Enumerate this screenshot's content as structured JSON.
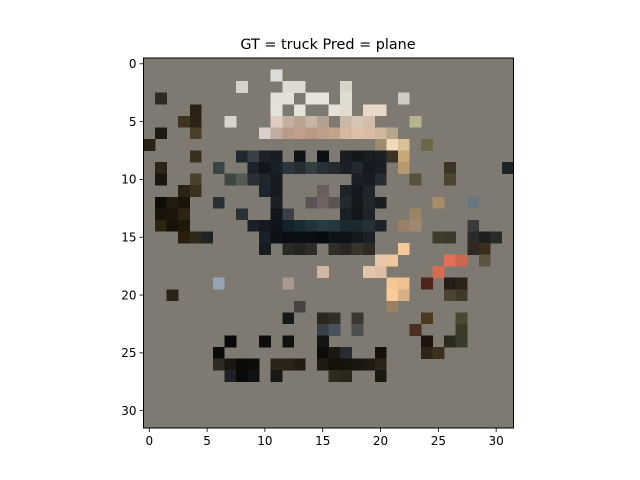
{
  "chart_data": {
    "type": "heatmap",
    "title": "GT = truck Pred = plane",
    "xlabel": "",
    "ylabel": "",
    "width": 32,
    "height": 32,
    "xlim": [
      -0.5,
      31.5
    ],
    "ylim": [
      31.5,
      -0.5
    ],
    "xticks": [
      0,
      5,
      10,
      15,
      20,
      25,
      30
    ],
    "yticks": [
      0,
      5,
      10,
      15,
      20,
      25,
      30
    ],
    "background": "#7e7a72",
    "pixels": [
      {
        "x": 11,
        "y": 1,
        "c": "#dcdcd8"
      },
      {
        "x": 8,
        "y": 2,
        "c": "#d6d2c8"
      },
      {
        "x": 12,
        "y": 2,
        "c": "#dedad2"
      },
      {
        "x": 13,
        "y": 2,
        "c": "#dedad2"
      },
      {
        "x": 17,
        "y": 2,
        "c": "#d8d4c8"
      },
      {
        "x": 1,
        "y": 3,
        "c": "#2e2a20"
      },
      {
        "x": 11,
        "y": 3,
        "c": "#e4e0d8"
      },
      {
        "x": 12,
        "y": 3,
        "c": "#e4e0d8"
      },
      {
        "x": 14,
        "y": 3,
        "c": "#e8e4dc"
      },
      {
        "x": 15,
        "y": 3,
        "c": "#e8e4dc"
      },
      {
        "x": 17,
        "y": 3,
        "c": "#e0dcd2"
      },
      {
        "x": 22,
        "y": 3,
        "c": "#d0ccc4"
      },
      {
        "x": 4,
        "y": 4,
        "c": "#2a2214"
      },
      {
        "x": 11,
        "y": 4,
        "c": "#e6e2da"
      },
      {
        "x": 13,
        "y": 4,
        "c": "#e6e2da"
      },
      {
        "x": 16,
        "y": 4,
        "c": "#e6e2da"
      },
      {
        "x": 17,
        "y": 4,
        "c": "#e0dad0"
      },
      {
        "x": 19,
        "y": 4,
        "c": "#e8d8c8"
      },
      {
        "x": 20,
        "y": 4,
        "c": "#e8d8c8"
      },
      {
        "x": 3,
        "y": 5,
        "c": "#3e3420"
      },
      {
        "x": 4,
        "y": 5,
        "c": "#2c2416"
      },
      {
        "x": 7,
        "y": 5,
        "c": "#d8d4cc"
      },
      {
        "x": 11,
        "y": 5,
        "c": "#e0ccc0"
      },
      {
        "x": 12,
        "y": 5,
        "c": "#c4b0a0"
      },
      {
        "x": 13,
        "y": 5,
        "c": "#b8a490"
      },
      {
        "x": 14,
        "y": 5,
        "c": "#c8b4a4"
      },
      {
        "x": 15,
        "y": 5,
        "c": "#b4a090"
      },
      {
        "x": 17,
        "y": 5,
        "c": "#c8b8a8"
      },
      {
        "x": 18,
        "y": 5,
        "c": "#d8c4b4"
      },
      {
        "x": 19,
        "y": 5,
        "c": "#d0bca8"
      },
      {
        "x": 23,
        "y": 5,
        "c": "#b8b490"
      },
      {
        "x": 1,
        "y": 6,
        "c": "#1e1a10"
      },
      {
        "x": 4,
        "y": 6,
        "c": "#4a4028"
      },
      {
        "x": 10,
        "y": 6,
        "c": "#d8d0cc"
      },
      {
        "x": 11,
        "y": 6,
        "c": "#c0aca0"
      },
      {
        "x": 12,
        "y": 6,
        "c": "#b89c88"
      },
      {
        "x": 13,
        "y": 6,
        "c": "#c0a08c"
      },
      {
        "x": 14,
        "y": 6,
        "c": "#b89a84"
      },
      {
        "x": 15,
        "y": 6,
        "c": "#bca08c"
      },
      {
        "x": 16,
        "y": 6,
        "c": "#c0a48c"
      },
      {
        "x": 17,
        "y": 6,
        "c": "#d4b8a0"
      },
      {
        "x": 18,
        "y": 6,
        "c": "#dcc0a8"
      },
      {
        "x": 19,
        "y": 6,
        "c": "#d8bca4"
      },
      {
        "x": 20,
        "y": 6,
        "c": "#d0b89c"
      },
      {
        "x": 21,
        "y": 6,
        "c": "#b4a88c"
      },
      {
        "x": 0,
        "y": 7,
        "c": "#2a2418"
      },
      {
        "x": 20,
        "y": 7,
        "c": "#9c8c70"
      },
      {
        "x": 21,
        "y": 7,
        "c": "#f0d8b8"
      },
      {
        "x": 22,
        "y": 7,
        "c": "#d8c098"
      },
      {
        "x": 24,
        "y": 7,
        "c": "#6a6848"
      },
      {
        "x": 4,
        "y": 8,
        "c": "#3a3020"
      },
      {
        "x": 8,
        "y": 8,
        "c": "#202830"
      },
      {
        "x": 9,
        "y": 8,
        "c": "#3a4048"
      },
      {
        "x": 10,
        "y": 8,
        "c": "#1c2228"
      },
      {
        "x": 11,
        "y": 8,
        "c": "#181e24"
      },
      {
        "x": 13,
        "y": 8,
        "c": "#101418"
      },
      {
        "x": 15,
        "y": 8,
        "c": "#0c1014"
      },
      {
        "x": 17,
        "y": 8,
        "c": "#1a1e22"
      },
      {
        "x": 18,
        "y": 8,
        "c": "#14181c"
      },
      {
        "x": 19,
        "y": 8,
        "c": "#181c20"
      },
      {
        "x": 20,
        "y": 8,
        "c": "#1c2024"
      },
      {
        "x": 21,
        "y": 8,
        "c": "#3a3428"
      },
      {
        "x": 22,
        "y": 8,
        "c": "#c8a878"
      },
      {
        "x": 1,
        "y": 9,
        "c": "#2c2618"
      },
      {
        "x": 6,
        "y": 9,
        "c": "#3a4440"
      },
      {
        "x": 9,
        "y": 9,
        "c": "#1c2228"
      },
      {
        "x": 10,
        "y": 9,
        "c": "#10161c"
      },
      {
        "x": 11,
        "y": 9,
        "c": "#18202a"
      },
      {
        "x": 12,
        "y": 9,
        "c": "#2c343c"
      },
      {
        "x": 13,
        "y": 9,
        "c": "#242c34"
      },
      {
        "x": 14,
        "y": 9,
        "c": "#343c44"
      },
      {
        "x": 15,
        "y": 9,
        "c": "#2a3038"
      },
      {
        "x": 16,
        "y": 9,
        "c": "#242a30"
      },
      {
        "x": 17,
        "y": 9,
        "c": "#1a2026"
      },
      {
        "x": 18,
        "y": 9,
        "c": "#222830"
      },
      {
        "x": 19,
        "y": 9,
        "c": "#141a20"
      },
      {
        "x": 20,
        "y": 9,
        "c": "#1a1e22"
      },
      {
        "x": 22,
        "y": 9,
        "c": "#b89870"
      },
      {
        "x": 26,
        "y": 9,
        "c": "#3a3424"
      },
      {
        "x": 31,
        "y": 9,
        "c": "#1c2426"
      },
      {
        "x": 1,
        "y": 10,
        "c": "#1a160e"
      },
      {
        "x": 4,
        "y": 10,
        "c": "#4a4030"
      },
      {
        "x": 7,
        "y": 10,
        "c": "#3e4640"
      },
      {
        "x": 8,
        "y": 10,
        "c": "#525a54"
      },
      {
        "x": 9,
        "y": 10,
        "c": "#2a3036"
      },
      {
        "x": 10,
        "y": 10,
        "c": "#1e262e"
      },
      {
        "x": 11,
        "y": 10,
        "c": "#161c22"
      },
      {
        "x": 18,
        "y": 10,
        "c": "#1a2026"
      },
      {
        "x": 19,
        "y": 10,
        "c": "#161c22"
      },
      {
        "x": 20,
        "y": 10,
        "c": "#262c30"
      },
      {
        "x": 23,
        "y": 10,
        "c": "#58523c"
      },
      {
        "x": 26,
        "y": 10,
        "c": "#4a4430"
      },
      {
        "x": 3,
        "y": 11,
        "c": "#2a2212"
      },
      {
        "x": 4,
        "y": 11,
        "c": "#3a3020"
      },
      {
        "x": 10,
        "y": 11,
        "c": "#1c242c"
      },
      {
        "x": 11,
        "y": 11,
        "c": "#141a20"
      },
      {
        "x": 15,
        "y": 11,
        "c": "#6a5e5c"
      },
      {
        "x": 17,
        "y": 11,
        "c": "#1c2228"
      },
      {
        "x": 18,
        "y": 11,
        "c": "#141a20"
      },
      {
        "x": 19,
        "y": 11,
        "c": "#1e2428"
      },
      {
        "x": 1,
        "y": 12,
        "c": "#0e0c08"
      },
      {
        "x": 2,
        "y": 12,
        "c": "#221c10"
      },
      {
        "x": 3,
        "y": 12,
        "c": "#1a1408"
      },
      {
        "x": 6,
        "y": 12,
        "c": "#2a3036"
      },
      {
        "x": 11,
        "y": 12,
        "c": "#1a2026"
      },
      {
        "x": 14,
        "y": 12,
        "c": "#5a5254"
      },
      {
        "x": 15,
        "y": 12,
        "c": "#6e6264"
      },
      {
        "x": 16,
        "y": 12,
        "c": "#5c5452"
      },
      {
        "x": 17,
        "y": 12,
        "c": "#222a2e"
      },
      {
        "x": 18,
        "y": 12,
        "c": "#141a1e"
      },
      {
        "x": 19,
        "y": 12,
        "c": "#20262a"
      },
      {
        "x": 20,
        "y": 12,
        "c": "#1a1e22"
      },
      {
        "x": 25,
        "y": 12,
        "c": "#a88c68"
      },
      {
        "x": 28,
        "y": 12,
        "c": "#687880"
      },
      {
        "x": 1,
        "y": 13,
        "c": "#181408"
      },
      {
        "x": 2,
        "y": 13,
        "c": "#1c160a"
      },
      {
        "x": 3,
        "y": 13,
        "c": "#2c2410"
      },
      {
        "x": 8,
        "y": 13,
        "c": "#2a3034"
      },
      {
        "x": 11,
        "y": 13,
        "c": "#10161c"
      },
      {
        "x": 12,
        "y": 13,
        "c": "#3a4046"
      },
      {
        "x": 17,
        "y": 13,
        "c": "#182024"
      },
      {
        "x": 18,
        "y": 13,
        "c": "#10161a"
      },
      {
        "x": 19,
        "y": 13,
        "c": "#1c2226"
      },
      {
        "x": 23,
        "y": 13,
        "c": "#9c8468"
      },
      {
        "x": 1,
        "y": 14,
        "c": "#2a2410"
      },
      {
        "x": 2,
        "y": 14,
        "c": "#181206"
      },
      {
        "x": 3,
        "y": 14,
        "c": "#1e1808"
      },
      {
        "x": 9,
        "y": 14,
        "c": "#1a2026"
      },
      {
        "x": 10,
        "y": 14,
        "c": "#141a20"
      },
      {
        "x": 11,
        "y": 14,
        "c": "#0e1418"
      },
      {
        "x": 12,
        "y": 14,
        "c": "#14222a"
      },
      {
        "x": 13,
        "y": 14,
        "c": "#182a32"
      },
      {
        "x": 14,
        "y": 14,
        "c": "#22323a"
      },
      {
        "x": 15,
        "y": 14,
        "c": "#283a44"
      },
      {
        "x": 16,
        "y": 14,
        "c": "#26343e"
      },
      {
        "x": 17,
        "y": 14,
        "c": "#1a2830"
      },
      {
        "x": 18,
        "y": 14,
        "c": "#1c2a30"
      },
      {
        "x": 19,
        "y": 14,
        "c": "#243038"
      },
      {
        "x": 20,
        "y": 14,
        "c": "#1c2226"
      },
      {
        "x": 22,
        "y": 14,
        "c": "#9a8064"
      },
      {
        "x": 23,
        "y": 14,
        "c": "#a08870"
      },
      {
        "x": 28,
        "y": 14,
        "c": "#3a3a38"
      },
      {
        "x": 3,
        "y": 15,
        "c": "#2a1e10"
      },
      {
        "x": 4,
        "y": 15,
        "c": "#30281a"
      },
      {
        "x": 5,
        "y": 15,
        "c": "#202224"
      },
      {
        "x": 10,
        "y": 15,
        "c": "#182028"
      },
      {
        "x": 11,
        "y": 15,
        "c": "#0c1218"
      },
      {
        "x": 12,
        "y": 15,
        "c": "#0a0e12"
      },
      {
        "x": 13,
        "y": 15,
        "c": "#0c1014"
      },
      {
        "x": 14,
        "y": 15,
        "c": "#0a0e12"
      },
      {
        "x": 15,
        "y": 15,
        "c": "#080c10"
      },
      {
        "x": 16,
        "y": 15,
        "c": "#101418"
      },
      {
        "x": 17,
        "y": 15,
        "c": "#0e1216"
      },
      {
        "x": 18,
        "y": 15,
        "c": "#141a1e"
      },
      {
        "x": 19,
        "y": 15,
        "c": "#1c2024"
      },
      {
        "x": 25,
        "y": 15,
        "c": "#3e3a2c"
      },
      {
        "x": 26,
        "y": 15,
        "c": "#3c382a"
      },
      {
        "x": 28,
        "y": 15,
        "c": "#2a2a28"
      },
      {
        "x": 29,
        "y": 15,
        "c": "#1e2020"
      },
      {
        "x": 30,
        "y": 15,
        "c": "#2a2c2a"
      },
      {
        "x": 10,
        "y": 16,
        "c": "#161c20"
      },
      {
        "x": 12,
        "y": 16,
        "c": "#2a2a26"
      },
      {
        "x": 13,
        "y": 16,
        "c": "#26241e"
      },
      {
        "x": 14,
        "y": 16,
        "c": "#2e2c26"
      },
      {
        "x": 16,
        "y": 16,
        "c": "#302e28"
      },
      {
        "x": 17,
        "y": 16,
        "c": "#28261e"
      },
      {
        "x": 18,
        "y": 16,
        "c": "#383428"
      },
      {
        "x": 19,
        "y": 16,
        "c": "#2e2a22"
      },
      {
        "x": 22,
        "y": 16,
        "c": "#f4c898"
      },
      {
        "x": 28,
        "y": 16,
        "c": "#302820"
      },
      {
        "x": 29,
        "y": 16,
        "c": "#3a2e20"
      },
      {
        "x": 20,
        "y": 17,
        "c": "#e8c8a8"
      },
      {
        "x": 21,
        "y": 17,
        "c": "#f0c8a0"
      },
      {
        "x": 26,
        "y": 17,
        "c": "#e07058"
      },
      {
        "x": 27,
        "y": 17,
        "c": "#c86850"
      },
      {
        "x": 29,
        "y": 17,
        "c": "#5c5440"
      },
      {
        "x": 15,
        "y": 18,
        "c": "#d0b8a0"
      },
      {
        "x": 19,
        "y": 18,
        "c": "#e4c4a8"
      },
      {
        "x": 20,
        "y": 18,
        "c": "#e0c0a4"
      },
      {
        "x": 25,
        "y": 18,
        "c": "#d86a50"
      },
      {
        "x": 6,
        "y": 19,
        "c": "#94a4b4"
      },
      {
        "x": 12,
        "y": 19,
        "c": "#a89890"
      },
      {
        "x": 21,
        "y": 19,
        "c": "#f4c894"
      },
      {
        "x": 22,
        "y": 19,
        "c": "#f0c090"
      },
      {
        "x": 24,
        "y": 19,
        "c": "#502418"
      },
      {
        "x": 26,
        "y": 19,
        "c": "#241c14"
      },
      {
        "x": 27,
        "y": 19,
        "c": "#2c2218"
      },
      {
        "x": 2,
        "y": 20,
        "c": "#2a2418"
      },
      {
        "x": 21,
        "y": 20,
        "c": "#f8cc98"
      },
      {
        "x": 22,
        "y": 20,
        "c": "#d8b088"
      },
      {
        "x": 26,
        "y": 20,
        "c": "#4a4434"
      },
      {
        "x": 27,
        "y": 20,
        "c": "#3e3a2a"
      },
      {
        "x": 13,
        "y": 21,
        "c": "#4a4440"
      },
      {
        "x": 21,
        "y": 21,
        "c": "#9a8060"
      },
      {
        "x": 12,
        "y": 22,
        "c": "#141818"
      },
      {
        "x": 15,
        "y": 22,
        "c": "#2a2620"
      },
      {
        "x": 16,
        "y": 22,
        "c": "#342e28"
      },
      {
        "x": 18,
        "y": 22,
        "c": "#3a3830"
      },
      {
        "x": 24,
        "y": 22,
        "c": "#4a3820"
      },
      {
        "x": 27,
        "y": 22,
        "c": "#4a4830"
      },
      {
        "x": 15,
        "y": 23,
        "c": "#384048"
      },
      {
        "x": 16,
        "y": 23,
        "c": "#48525c"
      },
      {
        "x": 18,
        "y": 23,
        "c": "#4c5050"
      },
      {
        "x": 23,
        "y": 23,
        "c": "#4a3020"
      },
      {
        "x": 27,
        "y": 23,
        "c": "#3a3a26"
      },
      {
        "x": 7,
        "y": 24,
        "c": "#080808"
      },
      {
        "x": 10,
        "y": 24,
        "c": "#0c0c0c"
      },
      {
        "x": 12,
        "y": 24,
        "c": "#101010"
      },
      {
        "x": 15,
        "y": 24,
        "c": "#141414"
      },
      {
        "x": 24,
        "y": 24,
        "c": "#1e140c"
      },
      {
        "x": 26,
        "y": 24,
        "c": "#2a2a1c"
      },
      {
        "x": 27,
        "y": 24,
        "c": "#3a3a28"
      },
      {
        "x": 6,
        "y": 25,
        "c": "#0c0a08"
      },
      {
        "x": 15,
        "y": 25,
        "c": "#0e0c08"
      },
      {
        "x": 16,
        "y": 25,
        "c": "#1a1810"
      },
      {
        "x": 17,
        "y": 25,
        "c": "#2a2c34"
      },
      {
        "x": 20,
        "y": 25,
        "c": "#141008"
      },
      {
        "x": 24,
        "y": 25,
        "c": "#302418"
      },
      {
        "x": 25,
        "y": 25,
        "c": "#3c3020"
      },
      {
        "x": 6,
        "y": 26,
        "c": "#2e2a24"
      },
      {
        "x": 7,
        "y": 26,
        "c": "#1a1610"
      },
      {
        "x": 8,
        "y": 26,
        "c": "#0c0a06"
      },
      {
        "x": 9,
        "y": 26,
        "c": "#0e0c08"
      },
      {
        "x": 11,
        "y": 26,
        "c": "#2a2418"
      },
      {
        "x": 12,
        "y": 26,
        "c": "#2a2418"
      },
      {
        "x": 13,
        "y": 26,
        "c": "#221c12"
      },
      {
        "x": 15,
        "y": 26,
        "c": "#1e1a12"
      },
      {
        "x": 16,
        "y": 26,
        "c": "#14100a"
      },
      {
        "x": 17,
        "y": 26,
        "c": "#16120c"
      },
      {
        "x": 18,
        "y": 26,
        "c": "#1a160e"
      },
      {
        "x": 19,
        "y": 26,
        "c": "#1e1a10"
      },
      {
        "x": 20,
        "y": 26,
        "c": "#2a2418"
      },
      {
        "x": 7,
        "y": 27,
        "c": "#1e2228"
      },
      {
        "x": 8,
        "y": 27,
        "c": "#0a0a0a"
      },
      {
        "x": 9,
        "y": 27,
        "c": "#121212"
      },
      {
        "x": 11,
        "y": 27,
        "c": "#1a1816"
      },
      {
        "x": 16,
        "y": 27,
        "c": "#2e2a1e"
      },
      {
        "x": 17,
        "y": 27,
        "c": "#2a2618"
      },
      {
        "x": 20,
        "y": 27,
        "c": "#1a1812"
      }
    ]
  }
}
